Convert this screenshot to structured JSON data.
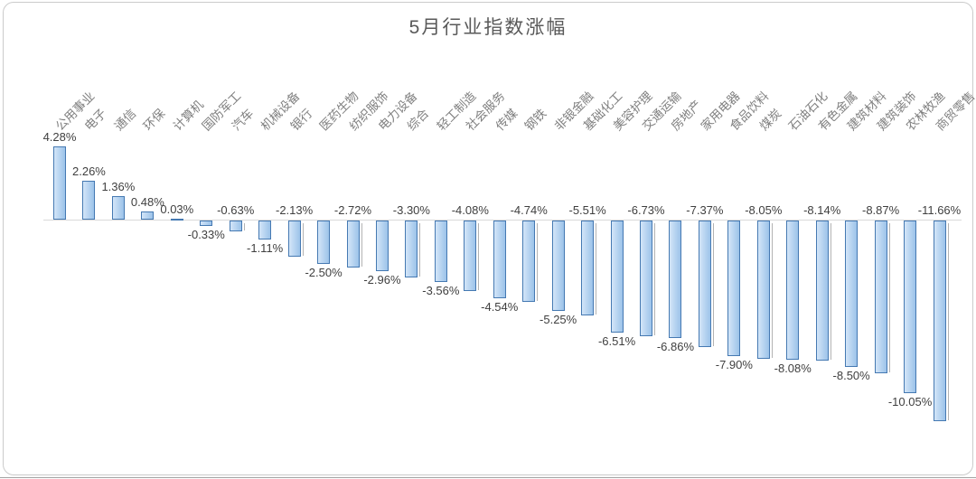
{
  "chart_data": {
    "type": "bar",
    "title": "5月行业指数涨幅",
    "value_suffix": "%",
    "grid": false,
    "legend": false,
    "ylim": [
      -12.5,
      5.2
    ],
    "categories": [
      "公用事业",
      "电子",
      "通信",
      "环保",
      "计算机",
      "国防军工",
      "汽车",
      "机械设备",
      "银行",
      "医药生物",
      "纺织服饰",
      "电力设备",
      "综合",
      "轻工制造",
      "社会服务",
      "传媒",
      "钢铁",
      "非银金融",
      "基础化工",
      "美容护理",
      "交通运输",
      "房地产",
      "家用电器",
      "食品饮料",
      "煤炭",
      "石油石化",
      "有色金属",
      "建筑材料",
      "建筑装饰",
      "农林牧渔",
      "商贸零售"
    ],
    "values": [
      4.28,
      2.26,
      1.36,
      0.48,
      0.03,
      -0.33,
      -0.63,
      -1.11,
      -2.13,
      -2.5,
      -2.72,
      -2.96,
      -3.3,
      -3.56,
      -4.08,
      -4.54,
      -4.74,
      -5.25,
      -5.51,
      -6.51,
      -6.73,
      -6.86,
      -7.37,
      -7.9,
      -8.05,
      -8.08,
      -8.14,
      -8.5,
      -8.87,
      -10.05,
      -11.66
    ],
    "labels": [
      "4.28%",
      "2.26%",
      "1.36%",
      "0.48%",
      "0.03%",
      "-0.33%",
      "-0.63%",
      "-1.11%",
      "-2.13%",
      "-2.50%",
      "-2.72%",
      "-2.96%",
      "-3.30%",
      "-3.56%",
      "-4.08%",
      "-4.54%",
      "-4.74%",
      "-5.25%",
      "-5.51%",
      "-6.51%",
      "-6.73%",
      "-6.86%",
      "-7.37%",
      "-7.90%",
      "-8.05%",
      "-8.08%",
      "-8.14%",
      "-8.50%",
      "-8.87%",
      "-10.05%",
      "-11.66%"
    ],
    "label_positions": [
      "top",
      "top",
      "top",
      "top",
      "top",
      "below",
      "above",
      "below",
      "above",
      "below",
      "above",
      "below",
      "above",
      "below",
      "above",
      "below",
      "above",
      "below",
      "above",
      "below",
      "above",
      "below",
      "above",
      "below",
      "above",
      "below",
      "above",
      "below",
      "above",
      "below",
      "above"
    ],
    "colors": {
      "bar_fill_start": "#d3e5f8",
      "bar_fill_end": "#9cc3e9",
      "bar_border": "#4579b2",
      "baseline": "#d9d9d9",
      "leader_line": "#b3b3b3",
      "data_label": "#3f3f3f",
      "category_label": "#808080",
      "title": "#595959",
      "frame_border": "#cbcbcb"
    }
  }
}
